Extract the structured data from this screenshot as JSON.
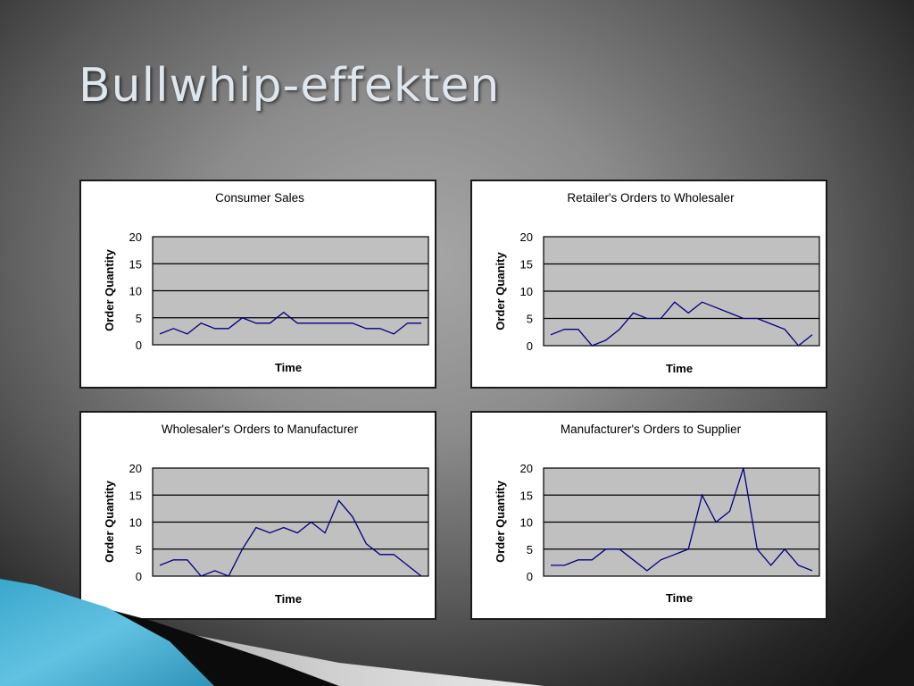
{
  "slide": {
    "title": "Bullwhip-effekten"
  },
  "colors": {
    "line": "#000080",
    "plot_bg": "#c0c0c0",
    "grid": "#000000",
    "card_bg": "#ffffff"
  },
  "chart_data": [
    {
      "type": "line",
      "title": "Consumer Sales",
      "xlabel": "Time",
      "ylabel": "Order Quantity",
      "ylim": [
        0,
        20
      ],
      "yticks": [
        "20",
        "15",
        "10",
        "5",
        "0"
      ],
      "grid": true,
      "series": [
        {
          "values": [
            2,
            3,
            2,
            4,
            3,
            3,
            5,
            4,
            4,
            6,
            4,
            4,
            4,
            4,
            4,
            3,
            3,
            2,
            4,
            4
          ]
        }
      ]
    },
    {
      "type": "line",
      "title": "Retailer's Orders to Wholesaler",
      "xlabel": "Time",
      "ylabel": "Order Quanity",
      "ylim": [
        0,
        20
      ],
      "yticks": [
        "20",
        "15",
        "10",
        "5",
        "0"
      ],
      "grid": true,
      "series": [
        {
          "values": [
            2,
            3,
            3,
            0,
            1,
            3,
            6,
            5,
            5,
            8,
            6,
            8,
            7,
            6,
            5,
            5,
            4,
            3,
            0,
            2
          ]
        }
      ]
    },
    {
      "type": "line",
      "title": "Wholesaler's Orders to Manufacturer",
      "xlabel": "Time",
      "ylabel": "Order Quantity",
      "ylim": [
        0,
        20
      ],
      "yticks": [
        "20",
        "15",
        "10",
        "5",
        "0"
      ],
      "grid": true,
      "series": [
        {
          "values": [
            2,
            3,
            3,
            0,
            1,
            0,
            5,
            9,
            8,
            9,
            8,
            10,
            8,
            14,
            11,
            6,
            4,
            4,
            2,
            0
          ]
        }
      ]
    },
    {
      "type": "line",
      "title": "Manufacturer's Orders to Supplier",
      "xlabel": "Time",
      "ylabel": "Order Quantity",
      "ylim": [
        0,
        20
      ],
      "yticks": [
        "20",
        "15",
        "10",
        "5",
        "0"
      ],
      "grid": true,
      "series": [
        {
          "values": [
            2,
            2,
            3,
            3,
            5,
            5,
            3,
            1,
            3,
            4,
            5,
            15,
            10,
            12,
            20,
            5,
            2,
            5,
            2,
            1
          ]
        }
      ]
    }
  ]
}
